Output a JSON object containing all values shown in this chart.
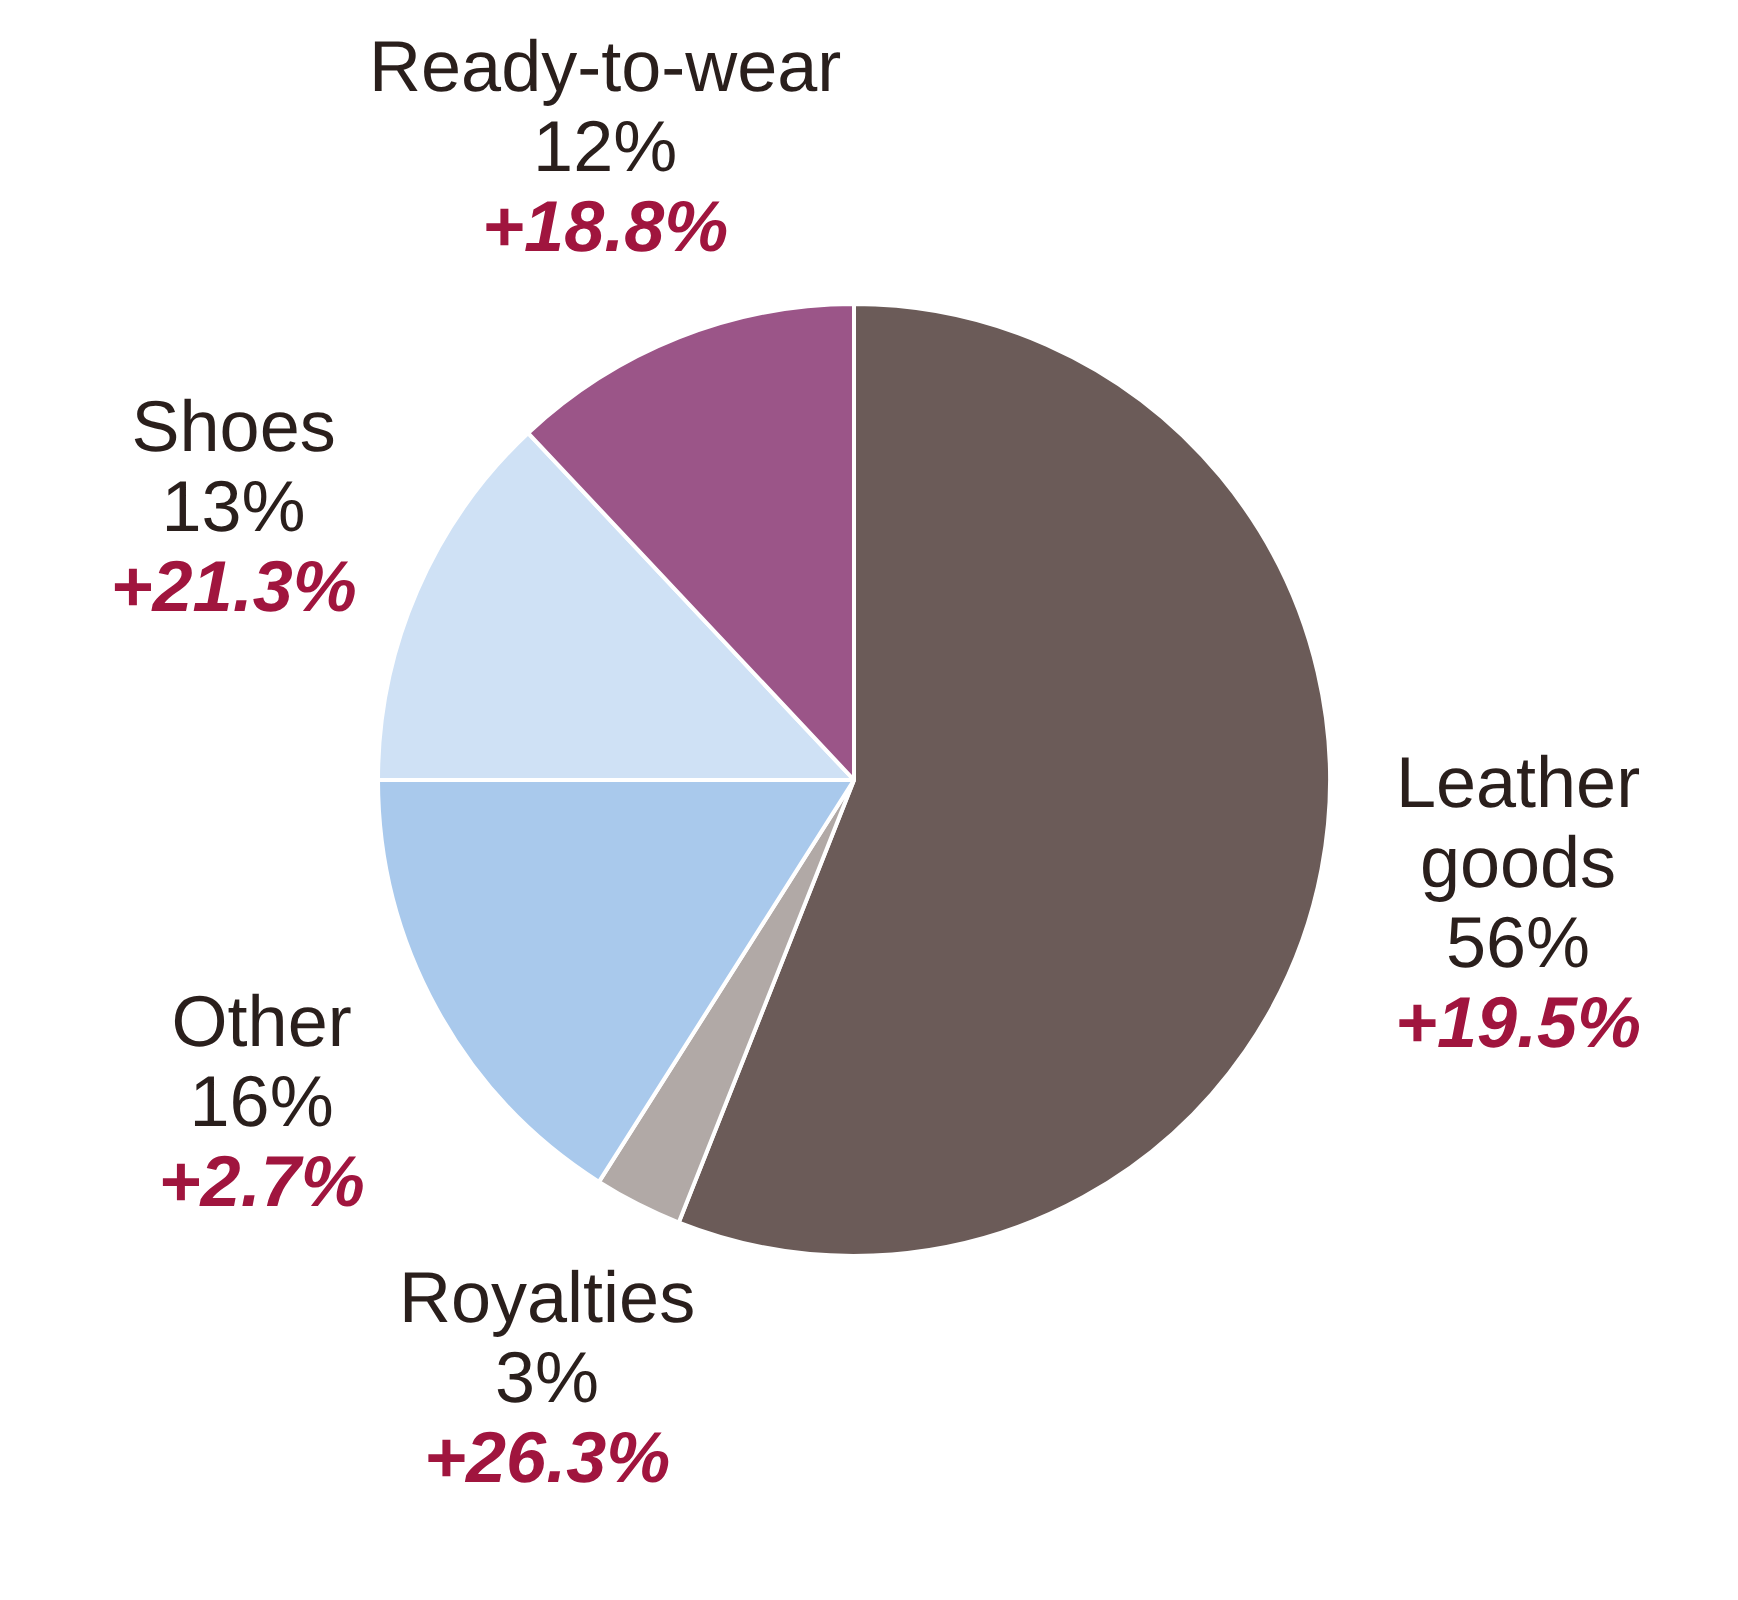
{
  "chart_data": {
    "type": "pie",
    "categories": [
      "Leather goods",
      "Royalties",
      "Other",
      "Shoes",
      "Ready-to-wear"
    ],
    "values": [
      56,
      3,
      16,
      13,
      12
    ],
    "value_labels": [
      "56%",
      "3%",
      "16%",
      "13%",
      "12%"
    ],
    "colors": [
      "#6b5b58",
      "#b1a9a6",
      "#a9c9ec",
      "#cfe1f5",
      "#9b5588"
    ],
    "annotations": [
      {
        "text": "+19.5%",
        "x": "Leather goods"
      },
      {
        "text": "+26.3%",
        "x": "Royalties"
      },
      {
        "text": "+2.7%",
        "x": "Other"
      },
      {
        "text": "+21.3%",
        "x": "Shoes"
      },
      {
        "text": "+18.8%",
        "x": "Ready-to-wear"
      }
    ],
    "legend": false
  }
}
